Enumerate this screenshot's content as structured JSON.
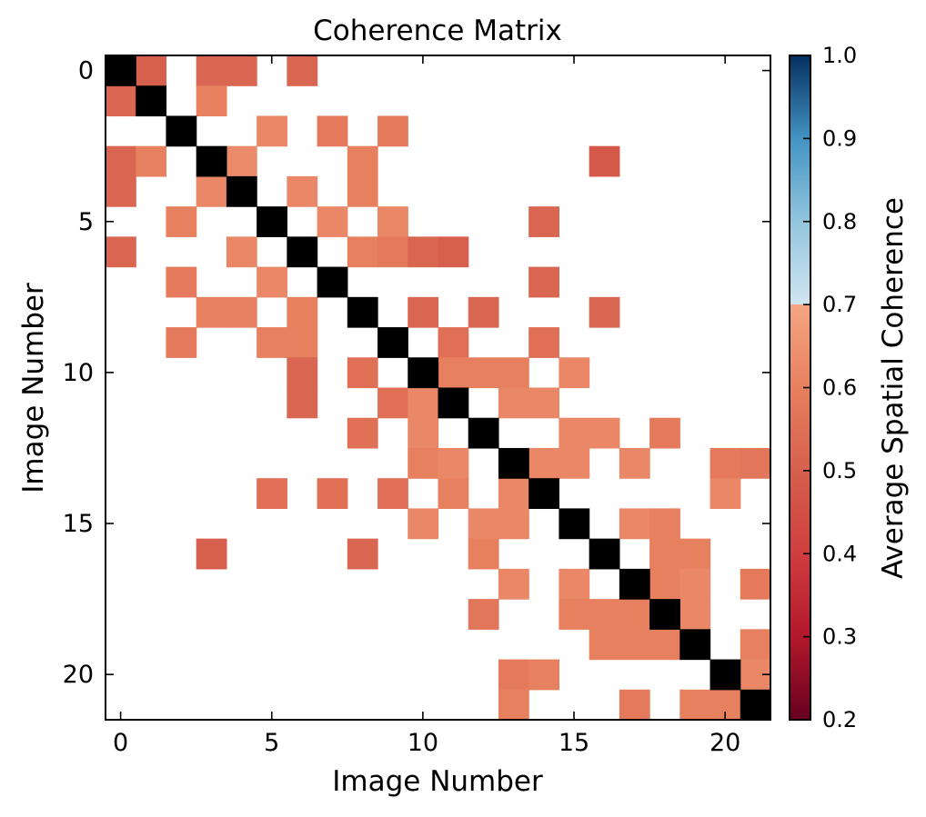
{
  "chart_data": {
    "type": "heatmap",
    "title": "Coherence Matrix",
    "xlabel": "Image Number",
    "ylabel": "Image Number",
    "n": 22,
    "x_ticks": [
      0,
      5,
      10,
      15,
      20
    ],
    "y_ticks": [
      0,
      5,
      10,
      15,
      20
    ],
    "xlim": [
      -0.5,
      21.5
    ],
    "ylim": [
      21.5,
      -0.5
    ],
    "threshold_note": "cells below the colorbar cutoff are shown blank",
    "colorbar": {
      "label": "Average Spatial Coherence",
      "min": 0.2,
      "max": 1.0,
      "ticks": [
        "0.2",
        "0.3",
        "0.4",
        "0.5",
        "0.6",
        "0.7",
        "0.8",
        "0.9",
        "1.0"
      ],
      "colormap": "RdBu",
      "stops": [
        {
          "v": 0.2,
          "c": "#67001f"
        },
        {
          "v": 0.3,
          "c": "#b2182b"
        },
        {
          "v": 0.4,
          "c": "#cf3e3e"
        },
        {
          "v": 0.5,
          "c": "#d6604d"
        },
        {
          "v": 0.6,
          "c": "#e7805f"
        },
        {
          "v": 0.7,
          "c": "#f4a582"
        },
        {
          "v": 0.7001,
          "c": "#d1e5f0"
        },
        {
          "v": 0.8,
          "c": "#92c5de"
        },
        {
          "v": 0.9,
          "c": "#4393c3"
        },
        {
          "v": 1.0,
          "c": "#053061"
        }
      ]
    },
    "diagonal_color": "#000000",
    "cells": [
      [
        0,
        1,
        0.5
      ],
      [
        0,
        3,
        0.52
      ],
      [
        0,
        4,
        0.52
      ],
      [
        0,
        6,
        0.52
      ],
      [
        1,
        0,
        0.52
      ],
      [
        1,
        3,
        0.6
      ],
      [
        2,
        5,
        0.62
      ],
      [
        2,
        7,
        0.58
      ],
      [
        2,
        9,
        0.58
      ],
      [
        3,
        0,
        0.52
      ],
      [
        3,
        1,
        0.6
      ],
      [
        3,
        4,
        0.63
      ],
      [
        3,
        8,
        0.6
      ],
      [
        3,
        16,
        0.48
      ],
      [
        4,
        0,
        0.52
      ],
      [
        4,
        3,
        0.62
      ],
      [
        4,
        6,
        0.62
      ],
      [
        4,
        8,
        0.6
      ],
      [
        5,
        2,
        0.6
      ],
      [
        5,
        7,
        0.62
      ],
      [
        5,
        9,
        0.62
      ],
      [
        5,
        14,
        0.52
      ],
      [
        6,
        0,
        0.52
      ],
      [
        6,
        4,
        0.62
      ],
      [
        6,
        8,
        0.6
      ],
      [
        6,
        9,
        0.58
      ],
      [
        6,
        10,
        0.52
      ],
      [
        6,
        11,
        0.5
      ],
      [
        7,
        2,
        0.58
      ],
      [
        7,
        5,
        0.62
      ],
      [
        7,
        14,
        0.52
      ],
      [
        8,
        3,
        0.6
      ],
      [
        8,
        4,
        0.6
      ],
      [
        8,
        6,
        0.6
      ],
      [
        8,
        10,
        0.52
      ],
      [
        8,
        12,
        0.52
      ],
      [
        8,
        16,
        0.52
      ],
      [
        9,
        2,
        0.58
      ],
      [
        9,
        5,
        0.6
      ],
      [
        9,
        6,
        0.6
      ],
      [
        9,
        11,
        0.55
      ],
      [
        9,
        14,
        0.55
      ],
      [
        10,
        6,
        0.52
      ],
      [
        10,
        8,
        0.55
      ],
      [
        10,
        11,
        0.6
      ],
      [
        10,
        12,
        0.6
      ],
      [
        10,
        13,
        0.6
      ],
      [
        10,
        15,
        0.62
      ],
      [
        11,
        6,
        0.52
      ],
      [
        11,
        9,
        0.55
      ],
      [
        11,
        10,
        0.62
      ],
      [
        11,
        13,
        0.62
      ],
      [
        11,
        14,
        0.62
      ],
      [
        12,
        8,
        0.55
      ],
      [
        12,
        10,
        0.62
      ],
      [
        12,
        15,
        0.62
      ],
      [
        12,
        16,
        0.62
      ],
      [
        12,
        18,
        0.58
      ],
      [
        13,
        10,
        0.6
      ],
      [
        13,
        11,
        0.62
      ],
      [
        13,
        14,
        0.62
      ],
      [
        13,
        15,
        0.62
      ],
      [
        13,
        17,
        0.62
      ],
      [
        13,
        20,
        0.58
      ],
      [
        13,
        21,
        0.57
      ],
      [
        14,
        5,
        0.55
      ],
      [
        14,
        7,
        0.55
      ],
      [
        14,
        9,
        0.55
      ],
      [
        14,
        11,
        0.6
      ],
      [
        14,
        13,
        0.62
      ],
      [
        14,
        20,
        0.62
      ],
      [
        15,
        10,
        0.62
      ],
      [
        15,
        12,
        0.62
      ],
      [
        15,
        13,
        0.62
      ],
      [
        15,
        17,
        0.62
      ],
      [
        15,
        18,
        0.6
      ],
      [
        16,
        3,
        0.5
      ],
      [
        16,
        8,
        0.52
      ],
      [
        16,
        12,
        0.6
      ],
      [
        16,
        18,
        0.6
      ],
      [
        16,
        19,
        0.6
      ],
      [
        17,
        13,
        0.62
      ],
      [
        17,
        15,
        0.62
      ],
      [
        17,
        18,
        0.6
      ],
      [
        17,
        19,
        0.62
      ],
      [
        17,
        21,
        0.58
      ],
      [
        18,
        12,
        0.57
      ],
      [
        18,
        15,
        0.6
      ],
      [
        18,
        16,
        0.6
      ],
      [
        18,
        17,
        0.6
      ],
      [
        18,
        19,
        0.62
      ],
      [
        19,
        16,
        0.6
      ],
      [
        19,
        17,
        0.6
      ],
      [
        19,
        18,
        0.6
      ],
      [
        19,
        21,
        0.6
      ],
      [
        20,
        13,
        0.58
      ],
      [
        20,
        14,
        0.6
      ],
      [
        20,
        21,
        0.62
      ],
      [
        21,
        13,
        0.6
      ],
      [
        21,
        17,
        0.58
      ],
      [
        21,
        19,
        0.6
      ],
      [
        21,
        20,
        0.6
      ]
    ]
  }
}
